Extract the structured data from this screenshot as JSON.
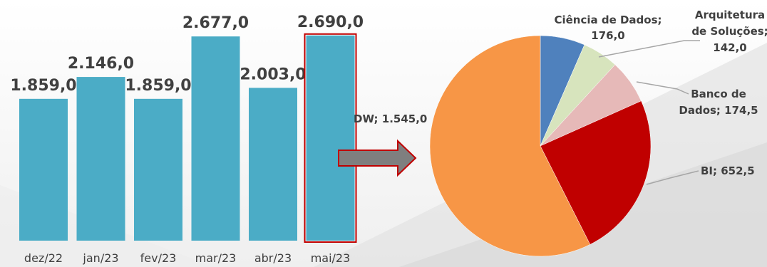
{
  "colors": {
    "bar": "#4BACC6",
    "highlight_outline": "#C00000",
    "arrow_fill": "#7F7F7F",
    "arrow_outline": "#C00000",
    "label_text": "#404040"
  },
  "chart_data": [
    {
      "type": "bar",
      "title": "",
      "xlabel": "",
      "ylabel": "",
      "categories": [
        "dez/22",
        "jan/23",
        "fev/23",
        "mar/23",
        "abr/23",
        "mai/23"
      ],
      "values": [
        1859.0,
        2146.0,
        1859.0,
        2677.0,
        2003.0,
        2690.0
      ],
      "value_labels": [
        "1.859,0",
        "2.146,0",
        "1.859,0",
        "2.677,0",
        "2.003,0",
        "2.690,0"
      ],
      "highlighted_category": "mai/23",
      "ylim": [
        0,
        2800
      ],
      "grid": false,
      "legend": "none"
    },
    {
      "type": "pie",
      "title": "",
      "slices": [
        {
          "label": "Ciência de Dados",
          "value": 176.0,
          "display": "176,0",
          "color": "#4F81BD"
        },
        {
          "label": "Arquitetura de Soluções",
          "value": 142.0,
          "display": "142,0",
          "color": "#D7E4BD"
        },
        {
          "label": "Banco de Dados",
          "value": 174.5,
          "display": "174,5",
          "color": "#E6B9B8"
        },
        {
          "label": "BI",
          "value": 652.5,
          "display": "652,5",
          "color": "#C00000"
        },
        {
          "label": "DW",
          "value": 1545.0,
          "display": "1.545,0",
          "color": "#F79646"
        }
      ],
      "labels_text": [
        [
          "Ciência de Dados;",
          "176,0"
        ],
        [
          "Arquitetura",
          "de Soluções;",
          "142,0"
        ],
        [
          "Banco de",
          "Dados; 174,5"
        ],
        [
          "BI; 652,5"
        ],
        [
          "DW; 1.545,0"
        ]
      ],
      "legend": "none"
    }
  ]
}
